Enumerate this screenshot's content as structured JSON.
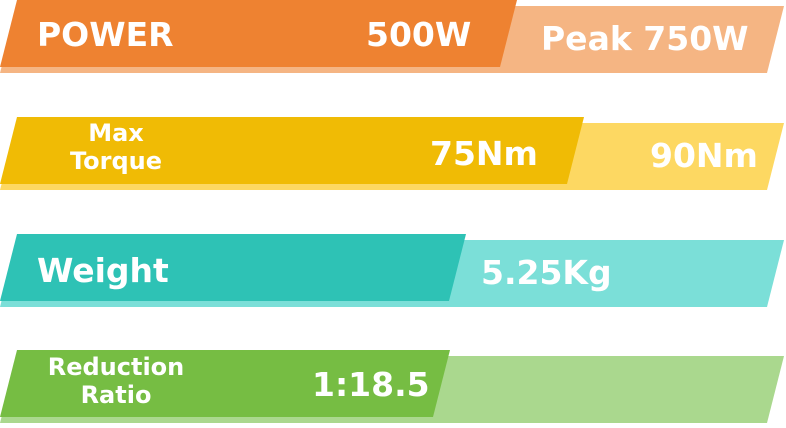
{
  "rows": [
    {
      "label": "POWER",
      "value": "500W",
      "peak": "Peak 750W",
      "dark_color": "#EE8231",
      "light_color": "#F5B583"
    },
    {
      "label_line1": "Max",
      "label_line2": "Torque",
      "value": "75Nm",
      "peak": "90Nm",
      "dark_color": "#F0BB05",
      "light_color": "#FDD862"
    },
    {
      "label": "Weight",
      "value": "5.25Kg",
      "dark_color": "#2EC2B5",
      "light_color": "#7BDFD8"
    },
    {
      "label_line1": "Reduction",
      "label_line2": "Ratio",
      "value": "1:18.5",
      "dark_color": "#76BD43",
      "light_color": "#AAD88E"
    }
  ]
}
